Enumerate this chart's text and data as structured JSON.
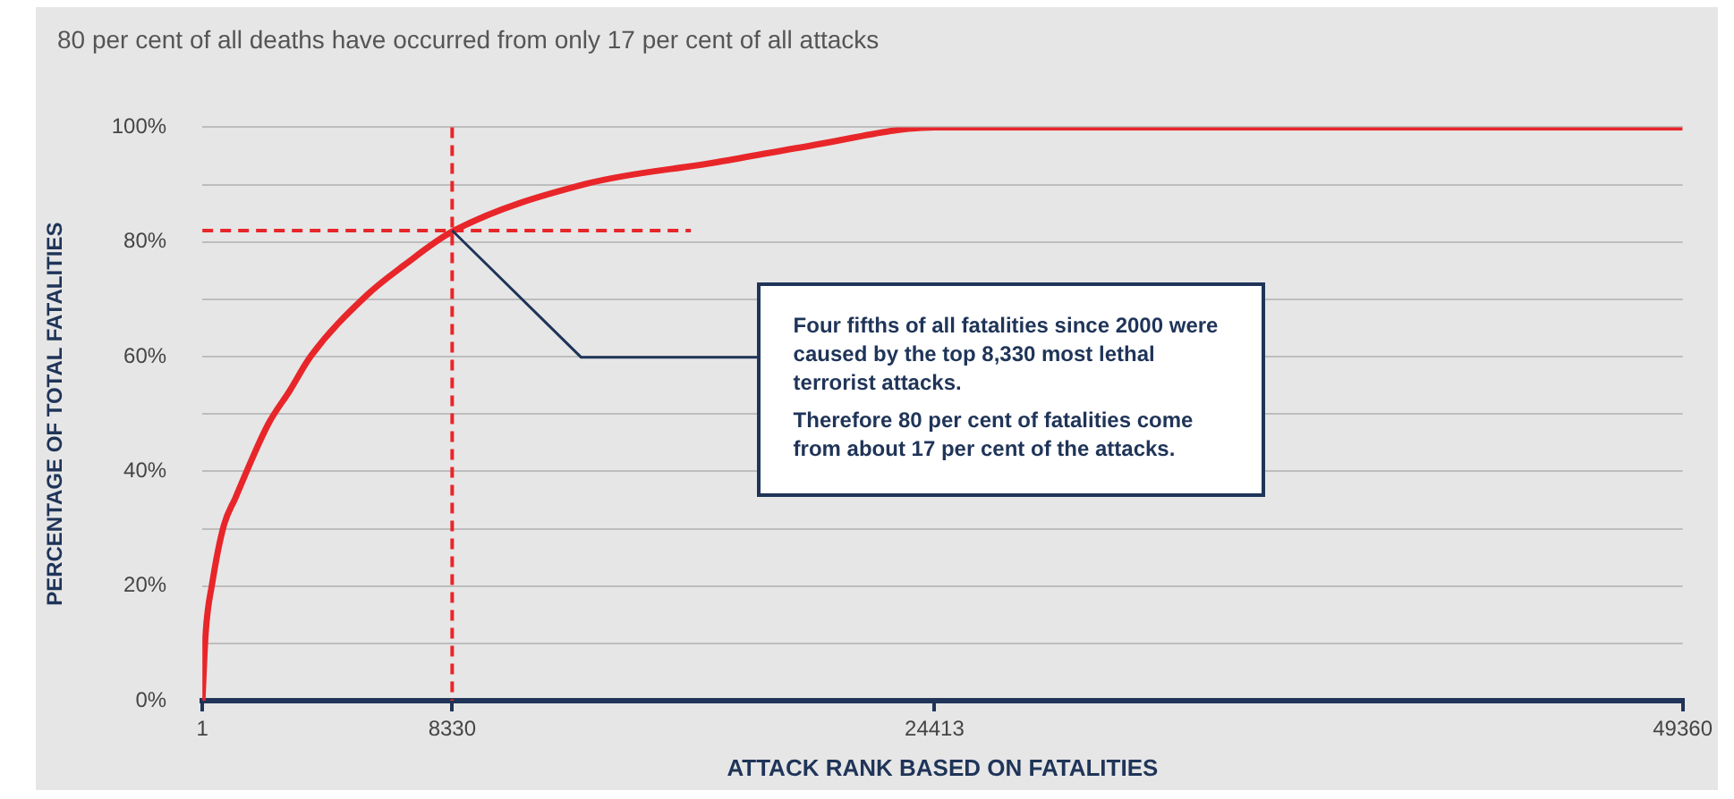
{
  "chart_data": {
    "type": "line",
    "title": "80 per cent of all deaths have occurred from only 17 per cent of all attacks",
    "xlabel": "ATTACK RANK BASED ON FATALITIES",
    "ylabel": "PERCENTAGE OF TOTAL FATALITIES",
    "x": [
      1,
      110,
      330,
      713,
      1097,
      2193,
      2905,
      3618,
      5481,
      6742,
      8330,
      12773,
      17154,
      20283,
      24413,
      49360
    ],
    "series": [
      {
        "color": "#e8262a",
        "values": [
          0,
          11.8,
          20.5,
          30.5,
          35.3,
          48.2,
          54,
          60.1,
          70.7,
          76,
          81.8,
          90.1,
          93.9,
          96.8,
          100,
          100
        ]
      }
    ],
    "xlim": [
      1,
      49360
    ],
    "xticks": [
      1,
      8330,
      24413,
      49360
    ],
    "ylim": [
      0,
      100
    ],
    "yticks": [
      {
        "value": 0,
        "label": "0%"
      },
      {
        "value": 10,
        "label": null
      },
      {
        "value": 20,
        "label": "20%"
      },
      {
        "value": 30,
        "label": null
      },
      {
        "value": 40,
        "label": "40%"
      },
      {
        "value": 50,
        "label": null
      },
      {
        "value": 60,
        "label": "60%"
      },
      {
        "value": 70,
        "label": null
      },
      {
        "value": 80,
        "label": "80%"
      },
      {
        "value": 90,
        "label": null
      },
      {
        "value": 100,
        "label": "100%"
      }
    ],
    "ref_lines": [
      {
        "axis": "x",
        "value": 8330,
        "color": "#e8262a",
        "line_style": "dashed"
      },
      {
        "axis": "y",
        "value": 82,
        "color": "#e8262a",
        "line_style": "dashed"
      }
    ],
    "annotations": [
      "Four fifths of all fatalities since 2000 were caused by the top 8,330 most lethal terrorist attacks.\nTherefore 80 per cent of fatalities come from about 17 per cent of the attacks."
    ],
    "grid": "y",
    "legend": false,
    "marker": "none",
    "line_style": "solid"
  }
}
